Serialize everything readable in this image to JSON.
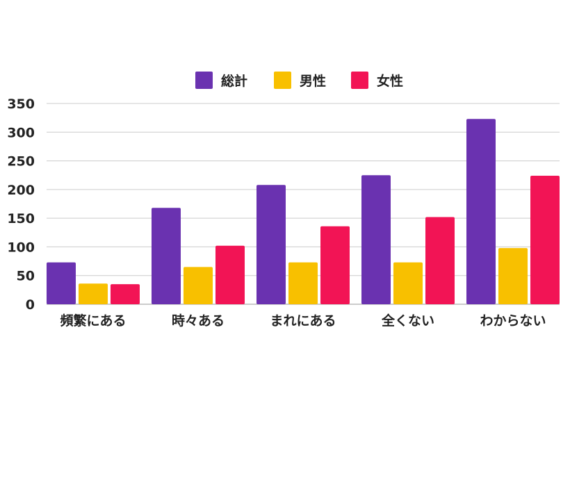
{
  "chart_data": {
    "type": "bar",
    "categories": [
      "頻繁にある",
      "時々ある",
      "まれにある",
      "全くない",
      "わからない"
    ],
    "series": [
      {
        "name": "総計",
        "color": "#6a32b0",
        "values": [
          73,
          168,
          208,
          225,
          323
        ]
      },
      {
        "name": "男性",
        "color": "#f8c000",
        "values": [
          36,
          65,
          73,
          73,
          98
        ]
      },
      {
        "name": "女性",
        "color": "#f21455",
        "values": [
          35,
          102,
          136,
          152,
          224
        ]
      }
    ],
    "title": "",
    "xlabel": "",
    "ylabel": "",
    "ylim": [
      0,
      350
    ],
    "yticks": [
      "0",
      "50",
      "100",
      "150",
      "200",
      "250",
      "300",
      "350"
    ],
    "grid": true,
    "legend_position": "top-center"
  }
}
